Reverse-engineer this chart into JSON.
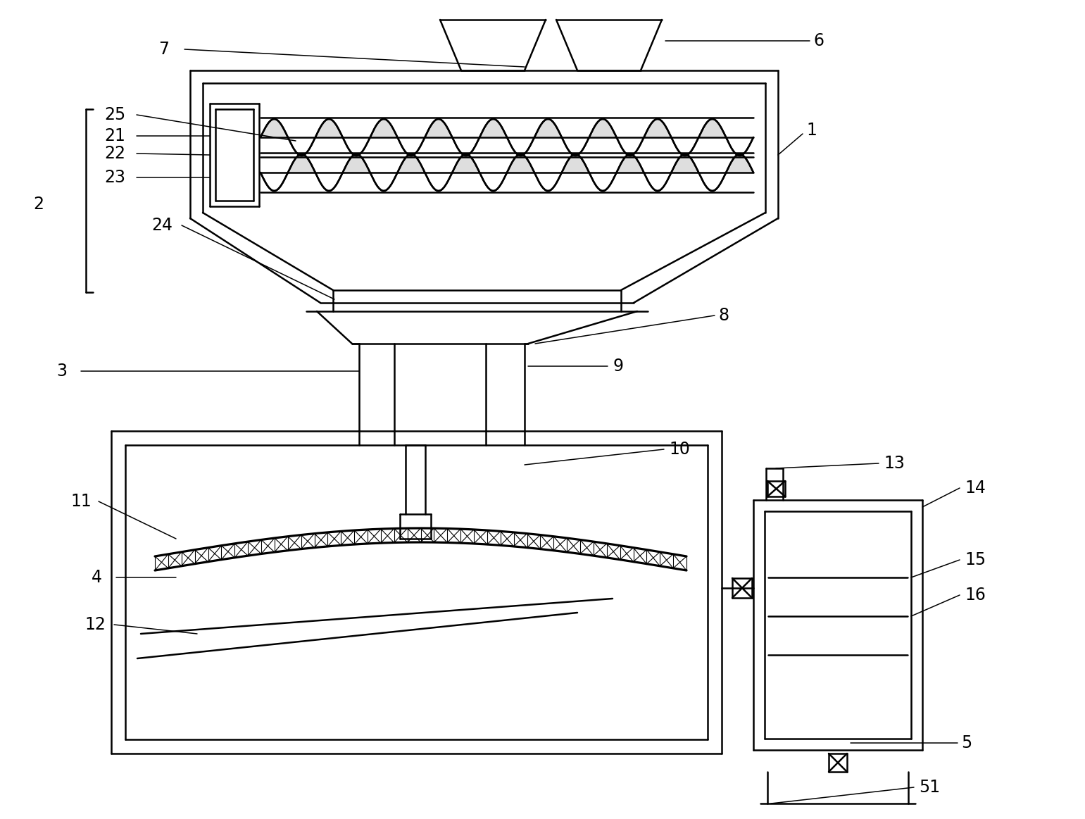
{
  "bg_color": "#ffffff",
  "line_color": "#000000",
  "label_fontsize": 17,
  "linewidth": 1.8
}
